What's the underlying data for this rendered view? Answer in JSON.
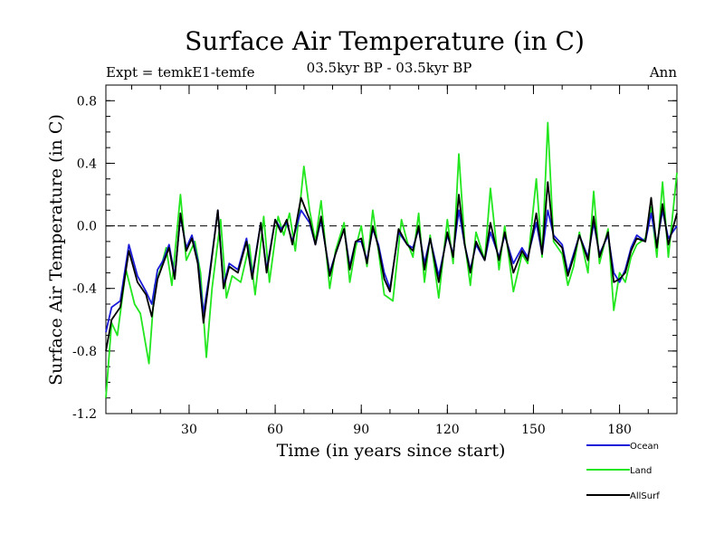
{
  "chart_data": {
    "type": "line",
    "title": "Surface Air Temperature (in C)",
    "subtitle_left": "Expt = temkE1-temfe",
    "subtitle_center": "03.5kyr BP - 03.5kyr BP",
    "subtitle_right": "Ann",
    "xlabel": "Time (in years since start)",
    "ylabel": "Surface Air Temperature (in C)",
    "xlim": [
      1,
      200
    ],
    "ylim": [
      -1.2,
      0.9
    ],
    "xticks": [
      30,
      60,
      90,
      120,
      150,
      180
    ],
    "yticks": [
      -1.2,
      -0.8,
      -0.4,
      0.0,
      0.4,
      0.8
    ],
    "ytick_labels": [
      "-1.2",
      "-0.8",
      "-0.4",
      "0.0",
      "0.4",
      "0.8"
    ],
    "reference_line_y": 0.0,
    "legend_position": "bottom-right, below plot",
    "series": [
      {
        "name": "Ocean",
        "color": "#1a1ad8",
        "x": [
          1,
          3,
          6,
          9,
          12,
          15,
          17,
          19,
          21,
          23,
          25,
          27,
          29,
          31,
          33,
          35,
          37,
          40,
          42,
          44,
          47,
          50,
          52,
          55,
          57,
          60,
          62,
          64,
          66,
          69,
          72,
          74,
          76,
          79,
          81,
          84,
          86,
          88,
          90,
          92,
          94,
          96,
          98,
          100,
          103,
          106,
          108,
          110,
          112,
          114,
          117,
          120,
          122,
          124,
          126,
          128,
          130,
          133,
          135,
          138,
          140,
          143,
          146,
          148,
          151,
          153,
          155,
          157,
          160,
          162,
          164,
          166,
          169,
          171,
          173,
          176,
          178,
          180,
          182,
          184,
          186,
          189,
          191,
          193,
          195,
          197,
          200
        ],
        "y": [
          -0.68,
          -0.52,
          -0.48,
          -0.12,
          -0.32,
          -0.42,
          -0.5,
          -0.28,
          -0.22,
          -0.12,
          -0.32,
          0.06,
          -0.14,
          -0.06,
          -0.22,
          -0.56,
          -0.32,
          0.1,
          -0.38,
          -0.24,
          -0.28,
          -0.08,
          -0.32,
          0.02,
          -0.28,
          0.04,
          -0.02,
          0.02,
          -0.1,
          0.1,
          0.02,
          -0.12,
          0.04,
          -0.3,
          -0.18,
          -0.02,
          -0.26,
          -0.1,
          -0.1,
          -0.22,
          -0.02,
          -0.12,
          -0.3,
          -0.4,
          -0.04,
          -0.12,
          -0.14,
          -0.02,
          -0.24,
          -0.08,
          -0.32,
          -0.06,
          -0.18,
          0.1,
          -0.12,
          -0.28,
          -0.12,
          -0.22,
          -0.04,
          -0.2,
          -0.06,
          -0.24,
          -0.14,
          -0.2,
          0.02,
          -0.18,
          0.1,
          -0.06,
          -0.12,
          -0.3,
          -0.18,
          -0.06,
          -0.2,
          0.02,
          -0.18,
          -0.06,
          -0.3,
          -0.36,
          -0.28,
          -0.14,
          -0.06,
          -0.1,
          0.08,
          -0.12,
          0.1,
          -0.08,
          0.0
        ]
      },
      {
        "name": "Land",
        "color": "#22e61e",
        "x": [
          1,
          3,
          5,
          8,
          11,
          13,
          16,
          18,
          20,
          22,
          24,
          27,
          29,
          32,
          34,
          36,
          38,
          41,
          43,
          45,
          48,
          51,
          53,
          56,
          58,
          61,
          63,
          65,
          67,
          70,
          72,
          74,
          76,
          79,
          81,
          84,
          86,
          88,
          90,
          92,
          94,
          96,
          98,
          101,
          104,
          106,
          108,
          110,
          112,
          114,
          117,
          120,
          122,
          124,
          126,
          128,
          130,
          133,
          135,
          138,
          140,
          143,
          146,
          148,
          151,
          153,
          155,
          157,
          160,
          162,
          164,
          166,
          169,
          171,
          173,
          176,
          178,
          180,
          182,
          184,
          186,
          189,
          191,
          193,
          195,
          197,
          200
        ],
        "y": [
          -1.1,
          -0.62,
          -0.7,
          -0.28,
          -0.5,
          -0.56,
          -0.88,
          -0.38,
          -0.28,
          -0.14,
          -0.38,
          0.2,
          -0.22,
          -0.1,
          -0.3,
          -0.84,
          -0.4,
          0.04,
          -0.46,
          -0.32,
          -0.36,
          -0.12,
          -0.44,
          0.06,
          -0.36,
          0.06,
          -0.06,
          0.08,
          -0.16,
          0.38,
          0.1,
          -0.1,
          0.16,
          -0.4,
          -0.16,
          0.02,
          -0.36,
          -0.14,
          0.0,
          -0.26,
          0.1,
          -0.16,
          -0.44,
          -0.48,
          0.04,
          -0.1,
          -0.2,
          0.08,
          -0.36,
          -0.06,
          -0.46,
          0.04,
          -0.24,
          0.46,
          -0.1,
          -0.38,
          -0.04,
          -0.22,
          0.24,
          -0.28,
          0.0,
          -0.42,
          -0.18,
          -0.24,
          0.3,
          -0.2,
          0.66,
          -0.1,
          -0.18,
          -0.38,
          -0.26,
          -0.04,
          -0.3,
          0.22,
          -0.24,
          -0.02,
          -0.54,
          -0.3,
          -0.36,
          -0.2,
          -0.12,
          -0.08,
          0.12,
          -0.2,
          0.28,
          -0.2,
          0.34
        ]
      },
      {
        "name": "AllSurf",
        "color": "#000000",
        "x": [
          1,
          3,
          6,
          9,
          12,
          15,
          17,
          19,
          21,
          23,
          25,
          27,
          29,
          31,
          33,
          35,
          37,
          40,
          42,
          44,
          47,
          50,
          52,
          55,
          57,
          60,
          62,
          64,
          66,
          69,
          72,
          74,
          76,
          79,
          81,
          84,
          86,
          88,
          90,
          92,
          94,
          96,
          98,
          100,
          103,
          106,
          108,
          110,
          112,
          114,
          117,
          120,
          122,
          124,
          126,
          128,
          130,
          133,
          135,
          138,
          140,
          143,
          146,
          148,
          151,
          153,
          155,
          157,
          160,
          162,
          164,
          166,
          169,
          171,
          173,
          176,
          178,
          180,
          182,
          184,
          186,
          189,
          191,
          193,
          195,
          197,
          200
        ],
        "y": [
          -0.8,
          -0.6,
          -0.52,
          -0.16,
          -0.36,
          -0.44,
          -0.58,
          -0.34,
          -0.24,
          -0.14,
          -0.34,
          0.08,
          -0.16,
          -0.08,
          -0.24,
          -0.62,
          -0.34,
          0.1,
          -0.4,
          -0.26,
          -0.3,
          -0.1,
          -0.34,
          0.02,
          -0.3,
          0.04,
          -0.04,
          0.04,
          -0.12,
          0.18,
          0.04,
          -0.12,
          0.06,
          -0.32,
          -0.18,
          -0.02,
          -0.28,
          -0.1,
          -0.08,
          -0.24,
          0.0,
          -0.14,
          -0.34,
          -0.42,
          -0.02,
          -0.12,
          -0.16,
          0.0,
          -0.28,
          -0.08,
          -0.36,
          -0.04,
          -0.2,
          0.2,
          -0.12,
          -0.3,
          -0.1,
          -0.22,
          0.02,
          -0.22,
          -0.04,
          -0.3,
          -0.16,
          -0.22,
          0.08,
          -0.18,
          0.28,
          -0.08,
          -0.14,
          -0.32,
          -0.2,
          -0.06,
          -0.22,
          0.06,
          -0.2,
          -0.04,
          -0.36,
          -0.34,
          -0.3,
          -0.16,
          -0.08,
          -0.1,
          0.18,
          -0.14,
          0.14,
          -0.12,
          0.08
        ]
      }
    ]
  }
}
